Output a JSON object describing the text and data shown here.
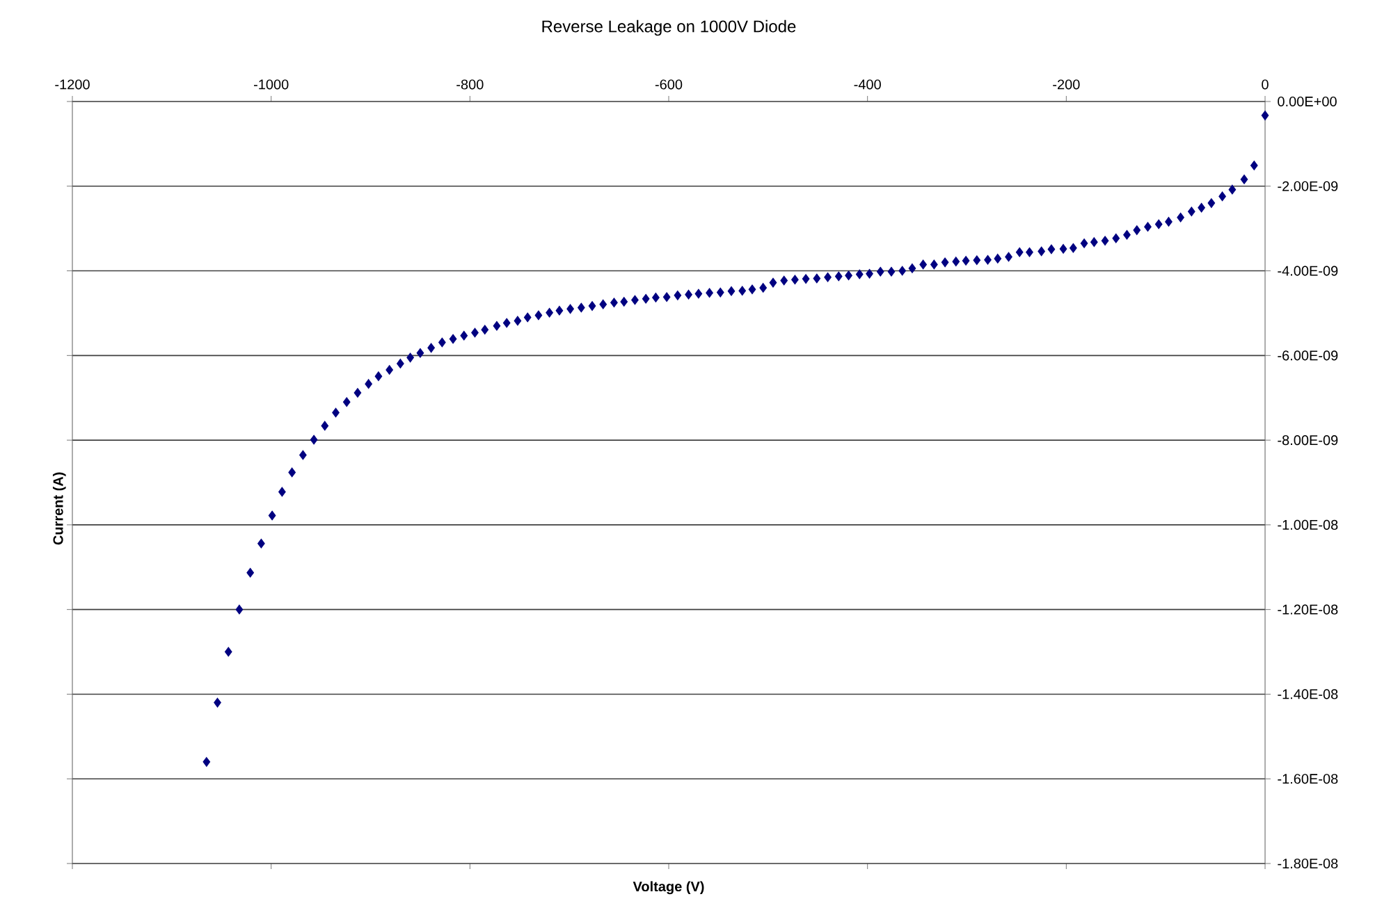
{
  "chart_data": {
    "type": "scatter",
    "title": "Reverse Leakage on 1000V Diode",
    "xlabel": "Voltage (V)",
    "ylabel": "Current (A)",
    "x": [
      -1065,
      -1054,
      -1043,
      -1032,
      -1021,
      -1010,
      -999,
      -989,
      -979,
      -968,
      -957,
      -946,
      -935,
      -924,
      -913,
      -902,
      -892,
      -881,
      -870,
      -860,
      -850,
      -839,
      -828,
      -817,
      -806,
      -795,
      -785,
      -773,
      -763,
      -752,
      -742,
      -731,
      -720,
      -710,
      -699,
      -688,
      -677,
      -666,
      -655,
      -645,
      -634,
      -623,
      -613,
      -602,
      -591,
      -580,
      -570,
      -559,
      -548,
      -537,
      -526,
      -516,
      -505,
      -495,
      -484,
      -473,
      -462,
      -451,
      -440,
      -429,
      -419,
      -408,
      -398,
      -387,
      -376,
      -365,
      -355,
      -344,
      -333,
      -322,
      -311,
      -301,
      -290,
      -279,
      -269,
      -258,
      -247,
      -237,
      -225,
      -215,
      -203,
      -193,
      -182,
      -172,
      -161,
      -150,
      -139,
      -129,
      -118,
      -107,
      -97,
      -85,
      -74,
      -64,
      -54,
      -43,
      -33,
      -21,
      -11,
      0
    ],
    "values": [
      -1.56e-08,
      -1.42e-08,
      -1.3e-08,
      -1.2e-08,
      -1.113e-08,
      -1.044e-08,
      -9.78e-09,
      -9.22e-09,
      -8.76e-09,
      -8.35e-09,
      -7.99e-09,
      -7.66e-09,
      -7.35e-09,
      -7.1e-09,
      -6.88e-09,
      -6.67e-09,
      -6.49e-09,
      -6.34e-09,
      -6.19e-09,
      -6.05e-09,
      -5.94e-09,
      -5.82e-09,
      -5.69e-09,
      -5.61e-09,
      -5.53e-09,
      -5.46e-09,
      -5.39e-09,
      -5.3e-09,
      -5.23e-09,
      -5.18e-09,
      -5.1e-09,
      -5.05e-09,
      -4.99e-09,
      -4.94e-09,
      -4.9e-09,
      -4.87e-09,
      -4.83e-09,
      -4.79e-09,
      -4.75e-09,
      -4.73e-09,
      -4.69e-09,
      -4.66e-09,
      -4.63e-09,
      -4.62e-09,
      -4.58e-09,
      -4.56e-09,
      -4.54e-09,
      -4.52e-09,
      -4.51e-09,
      -4.48e-09,
      -4.47e-09,
      -4.44e-09,
      -4.4e-09,
      -4.28e-09,
      -4.23e-09,
      -4.21e-09,
      -4.19e-09,
      -4.18e-09,
      -4.15e-09,
      -4.13e-09,
      -4.11e-09,
      -4.08e-09,
      -4.07e-09,
      -4.02e-09,
      -4.02e-09,
      -4e-09,
      -3.94e-09,
      -3.85e-09,
      -3.85e-09,
      -3.8e-09,
      -3.78e-09,
      -3.76e-09,
      -3.75e-09,
      -3.74e-09,
      -3.71e-09,
      -3.67e-09,
      -3.56e-09,
      -3.56e-09,
      -3.54e-09,
      -3.49e-09,
      -3.48e-09,
      -3.46e-09,
      -3.35e-09,
      -3.32e-09,
      -3.29e-09,
      -3.23e-09,
      -3.15e-09,
      -3.04e-09,
      -2.96e-09,
      -2.9e-09,
      -2.84e-09,
      -2.74e-09,
      -2.6e-09,
      -2.51e-09,
      -2.4e-09,
      -2.24e-09,
      -2.08e-09,
      -1.84e-09,
      -1.51e-09,
      -3.3e-10
    ],
    "color": "#000080",
    "marker": "diamond",
    "grid": "y",
    "xlim": [
      -1200,
      0
    ],
    "xticks": [
      -1200,
      -1000,
      -800,
      -600,
      -400,
      -200,
      0
    ],
    "ylim": [
      -1.8e-08,
      0
    ],
    "yticks": [
      {
        "value": 0,
        "label": "0.00E+00"
      },
      {
        "value": -2e-09,
        "label": "-2.00E-09"
      },
      {
        "value": -4e-09,
        "label": "-4.00E-09"
      },
      {
        "value": -6e-09,
        "label": "-6.00E-09"
      },
      {
        "value": -8e-09,
        "label": "-8.00E-09"
      },
      {
        "value": -1e-08,
        "label": "-1.00E-08"
      },
      {
        "value": -1.2e-08,
        "label": "-1.20E-08"
      },
      {
        "value": -1.4e-08,
        "label": "-1.40E-08"
      },
      {
        "value": -1.6e-08,
        "label": "-1.60E-08"
      },
      {
        "value": -1.8e-08,
        "label": "-1.80E-08"
      }
    ]
  }
}
